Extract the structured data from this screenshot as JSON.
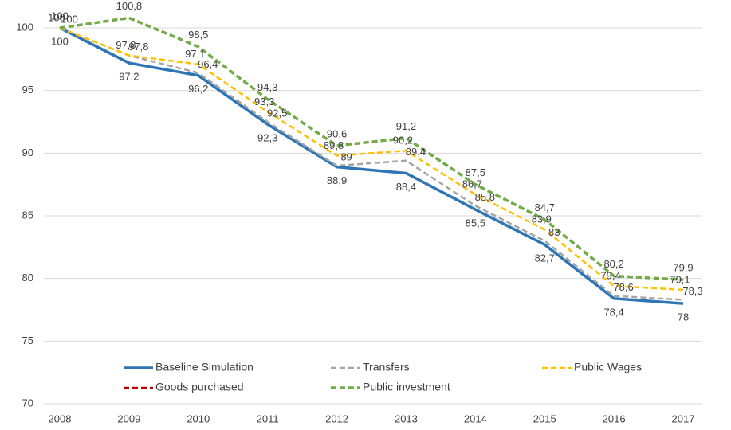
{
  "chart_data": {
    "type": "line",
    "x": [
      2008,
      2009,
      2010,
      2011,
      2012,
      2013,
      2014,
      2015,
      2016,
      2017
    ],
    "xlim": [
      2008,
      2017
    ],
    "ylim": [
      70,
      100
    ],
    "yticks": [
      70,
      75,
      80,
      85,
      90,
      95,
      100
    ],
    "grid": true,
    "legend": "bottom",
    "series": [
      {
        "name": "Baseline Simulation",
        "color": "#2e75b6",
        "line_style": "solid",
        "values": [
          100,
          97.2,
          96.2,
          92.3,
          88.9,
          88.4,
          85.5,
          82.7,
          78.4,
          78
        ],
        "value_labels": [
          "100",
          "97,2",
          "96,2",
          "92,3",
          "88,9",
          "88,4",
          "85,5",
          "82,7",
          "78,4",
          "78"
        ]
      },
      {
        "name": "Transfers",
        "color": "#a5a5a5",
        "line_style": "dashed",
        "values": [
          100,
          97.8,
          96.4,
          92.5,
          89,
          89.4,
          85.8,
          83,
          78.6,
          78.3
        ],
        "value_labels": [
          "100",
          "97,8",
          "96,4",
          "92,5",
          "89",
          "89,4",
          "85,8",
          "83",
          "78,6",
          "78,3"
        ]
      },
      {
        "name": "Public Wages",
        "color": "#ffc000",
        "line_style": "dashed",
        "values": [
          100,
          97.8,
          97.1,
          93.3,
          89.8,
          90.2,
          86.7,
          83.9,
          79.4,
          79.1
        ],
        "value_labels": [
          "100",
          "97,8",
          "97,1",
          "93,3",
          "89,8",
          "90,2",
          "86,7",
          "83,9",
          "79,4",
          "79,1"
        ]
      },
      {
        "name": "Goods purchased",
        "color": "#c00000",
        "line_style": "dashed",
        "values": [
          100,
          100.8,
          98.5,
          94.3,
          90.6,
          91.2,
          87.5,
          84.7,
          80.2,
          79.9
        ],
        "value_labels": [
          "100",
          "100,8",
          "98,5",
          "94,3",
          "90,6",
          "91,2",
          "87,5",
          "84,7",
          "80,2",
          "79,9"
        ]
      },
      {
        "name": "Public investment",
        "color": "#70ad47",
        "line_style": "dashed",
        "values": [
          100,
          100.8,
          98.5,
          94.3,
          90.6,
          91.2,
          87.5,
          84.7,
          80.2,
          79.9
        ]
      }
    ]
  }
}
